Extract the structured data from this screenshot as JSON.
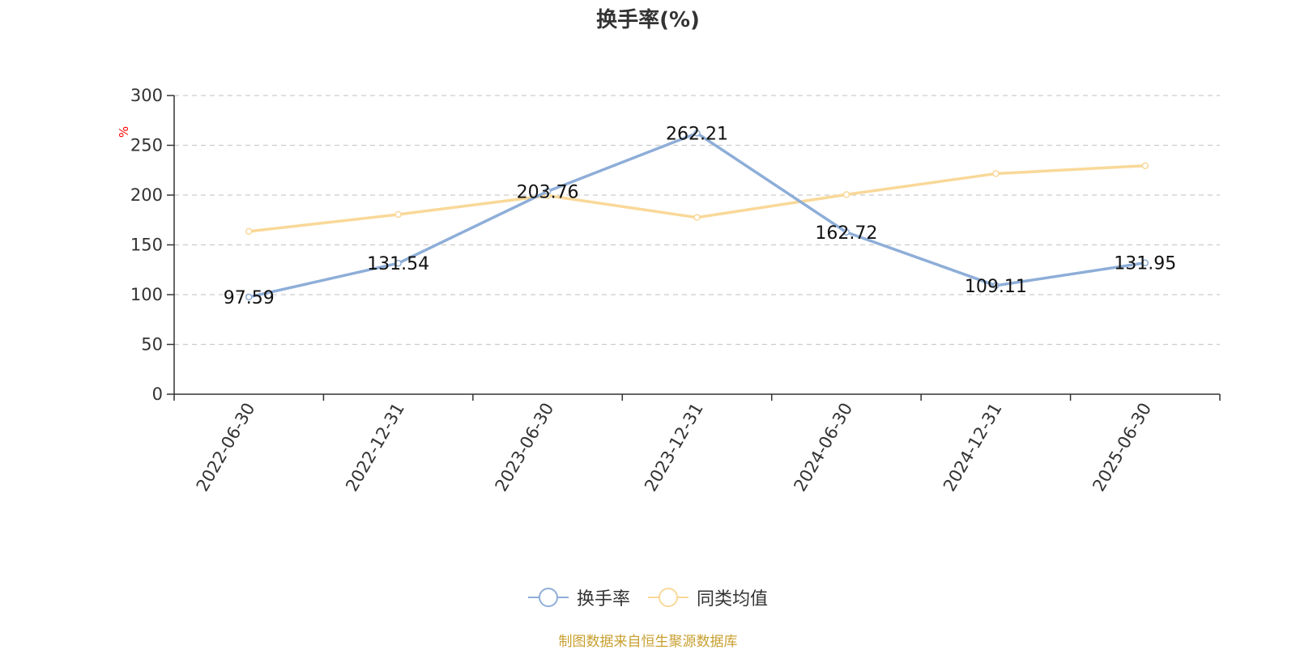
{
  "chart_data": {
    "type": "line",
    "title": "换手率(%)",
    "ylabel": "%",
    "xlabel": "",
    "categories": [
      "2022-06-30",
      "2022-12-31",
      "2023-06-30",
      "2023-12-31",
      "2024-06-30",
      "2024-12-31",
      "2025-06-30"
    ],
    "ylim": [
      0,
      300
    ],
    "yticks": [
      0,
      50,
      100,
      150,
      200,
      250,
      300
    ],
    "grid": true,
    "legend_position": "bottom",
    "series": [
      {
        "name": "换手率",
        "values": [
          97.59,
          131.54,
          203.76,
          262.21,
          162.72,
          109.11,
          131.95
        ],
        "labels": [
          "97.59",
          "131.54",
          "203.76",
          "262.21",
          "162.72",
          "109.11",
          "131.95"
        ],
        "color": "#8eaed8"
      },
      {
        "name": "同类均值",
        "values": [
          163.5,
          180.5,
          199.5,
          177.5,
          200.5,
          221.5,
          229.5
        ],
        "color": "#f9d898"
      }
    ]
  },
  "source_note": "制图数据来自恒生聚源数据库",
  "colors": {
    "axis": "#333333",
    "grid": "#cccccc",
    "ylabel": "#ff0000",
    "source": "#c8a030"
  }
}
